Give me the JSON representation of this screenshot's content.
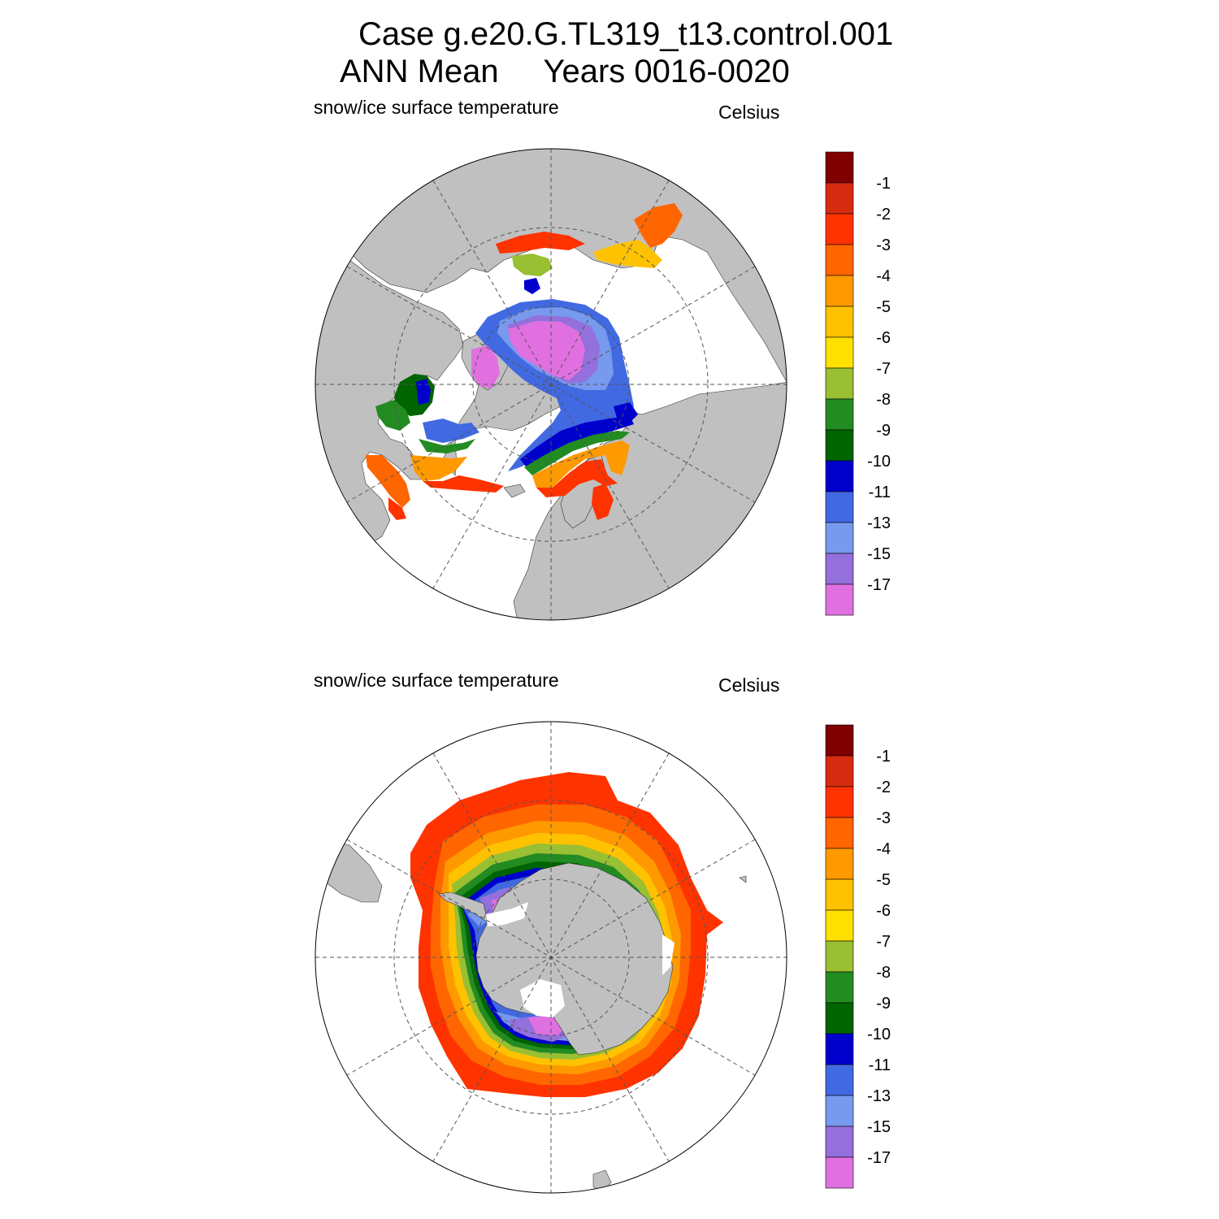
{
  "figure": {
    "title_line1": "Case g.e20.G.TL319_t13.control.001",
    "title_line2": "ANN Mean     Years 0016-0020"
  },
  "panels": [
    {
      "id": "north",
      "hemisphere": "Arctic (north polar stereographic)",
      "variable_label": "snow/ice surface temperature",
      "units_label": "Celsius"
    },
    {
      "id": "south",
      "hemisphere": "Antarctic (south polar stereographic)",
      "variable_label": "snow/ice surface temperature",
      "units_label": "Celsius"
    }
  ],
  "colorbar": {
    "labels": [
      "-1",
      "-2",
      "-3",
      "-4",
      "-5",
      "-6",
      "-7",
      "-8",
      "-9",
      "-10",
      "-11",
      "-13",
      "-15",
      "-17"
    ],
    "colors": [
      "#800000",
      "#d62b10",
      "#ff3300",
      "#ff6600",
      "#ff9900",
      "#ffc200",
      "#ffe000",
      "#99bf33",
      "#228b22",
      "#006400",
      "#0000cd",
      "#4169e1",
      "#7799ee",
      "#9370db",
      "#e070e0"
    ]
  },
  "map_colors": {
    "land": "#c0c0c0",
    "ocean": "#ffffff",
    "gridlines": "#555555"
  }
}
